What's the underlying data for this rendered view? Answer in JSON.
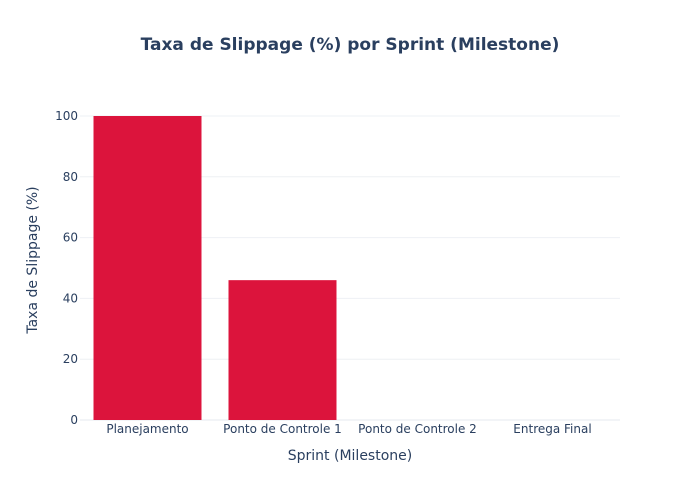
{
  "chart_data": {
    "type": "bar",
    "title": "Taxa de Slippage (%) por Sprint (Milestone)",
    "xlabel": "Sprint (Milestone)",
    "ylabel": "Taxa de Slippage (%)",
    "categories": [
      "Planejamento",
      "Ponto de Controle 1",
      "Ponto de Controle 2",
      "Entrega Final"
    ],
    "values": [
      100,
      46,
      0,
      0
    ],
    "ylim": [
      0,
      100
    ],
    "yticks": [
      0,
      20,
      40,
      60,
      80,
      100
    ],
    "grid": true,
    "legend": "none",
    "bar_color": "#dc143c"
  }
}
